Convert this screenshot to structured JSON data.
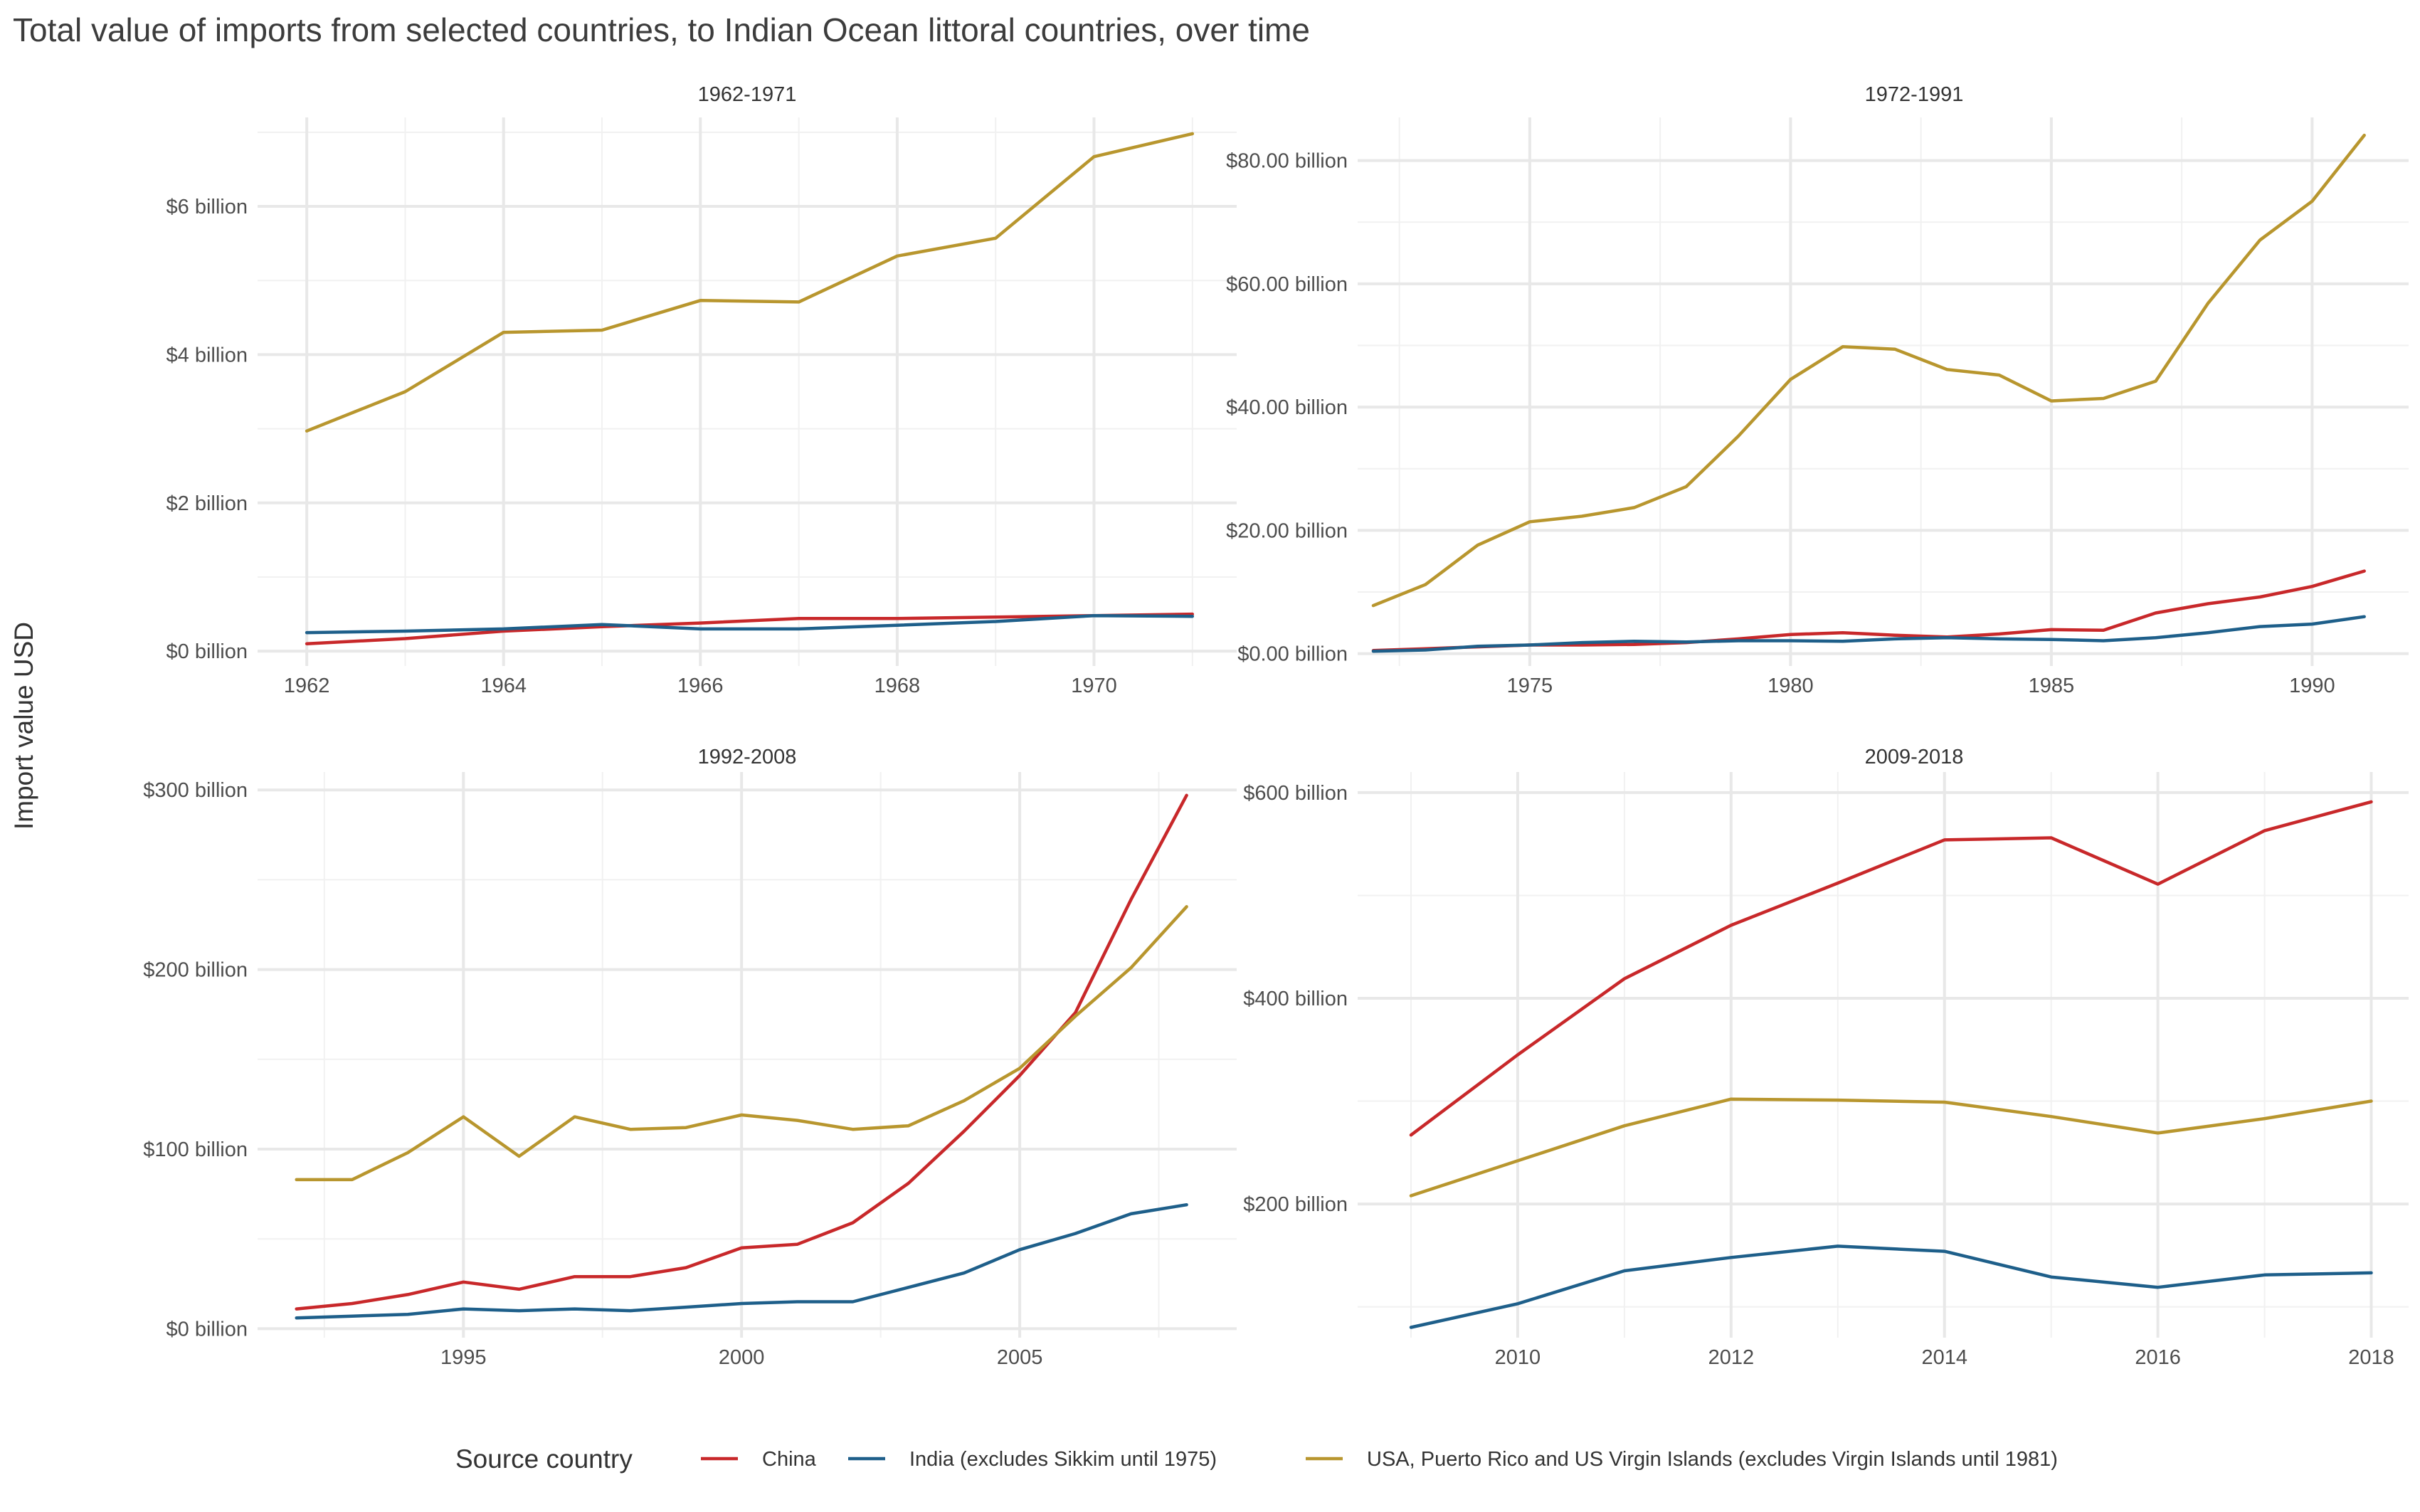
{
  "title": "Total value of imports from selected countries, to Indian Ocean littoral countries, over time",
  "y_axis_label": "Import value USD",
  "legend": {
    "title": "Source country",
    "entries": [
      {
        "name": "China",
        "color": "#c8282a"
      },
      {
        "name": "India (excludes Sikkim until 1975)",
        "color": "#1e5f8a"
      },
      {
        "name": "USA, Puerto Rico and US Virgin Islands (excludes Virgin Islands until 1981)",
        "color": "#b8962e"
      }
    ],
    "placement": "bottom"
  },
  "chart_data": [
    {
      "type": "line",
      "title": "1962-1971",
      "x_ticks": [
        1962,
        1964,
        1966,
        1968,
        1970
      ],
      "xlim": [
        1961.5,
        1971.45
      ],
      "y_ticks": [
        0,
        2,
        4,
        6
      ],
      "y_tick_labels": [
        "$0 billion",
        "$2 billion",
        "$4 billion",
        "$6 billion"
      ],
      "ylim": [
        -0.2,
        7.2
      ],
      "grid": true,
      "x": [
        1962,
        1963,
        1964,
        1965,
        1966,
        1967,
        1968,
        1969,
        1970,
        1971
      ],
      "series": [
        {
          "name": "China",
          "values": [
            0.1,
            0.17,
            0.27,
            0.33,
            0.38,
            0.44,
            0.44,
            0.46,
            0.48,
            0.5
          ]
        },
        {
          "name": "India (excludes Sikkim until 1975)",
          "values": [
            0.25,
            0.27,
            0.3,
            0.36,
            0.3,
            0.3,
            0.35,
            0.4,
            0.48,
            0.47
          ]
        },
        {
          "name": "USA, Puerto Rico and US Virgin Islands (excludes Virgin Islands until 1981)",
          "values": [
            2.97,
            3.5,
            4.3,
            4.33,
            4.73,
            4.71,
            5.33,
            5.57,
            6.67,
            6.98
          ]
        }
      ]
    },
    {
      "type": "line",
      "title": "1972-1991",
      "x_ticks": [
        1975,
        1980,
        1985,
        1990
      ],
      "xlim": [
        1971.7,
        1991.85
      ],
      "y_ticks": [
        0,
        20,
        40,
        60,
        80
      ],
      "y_tick_labels": [
        "$0.00 billion",
        "$20.00 billion",
        "$40.00 billion",
        "$60.00 billion",
        "$80.00 billion"
      ],
      "ylim": [
        -2,
        87
      ],
      "grid": true,
      "x": [
        1972,
        1973,
        1974,
        1975,
        1976,
        1977,
        1978,
        1979,
        1980,
        1981,
        1982,
        1983,
        1984,
        1985,
        1986,
        1987,
        1988,
        1989,
        1990,
        1991
      ],
      "series": [
        {
          "name": "China",
          "values": [
            0.5,
            0.8,
            1.1,
            1.4,
            1.4,
            1.5,
            1.8,
            2.4,
            3.1,
            3.4,
            3.0,
            2.7,
            3.2,
            3.9,
            3.8,
            6.6,
            8.1,
            9.2,
            10.9,
            13.4
          ]
        },
        {
          "name": "India (excludes Sikkim until 1975)",
          "values": [
            0.4,
            0.6,
            1.2,
            1.4,
            1.8,
            2.0,
            1.9,
            2.1,
            2.1,
            2.0,
            2.4,
            2.6,
            2.4,
            2.3,
            2.1,
            2.6,
            3.4,
            4.4,
            4.8,
            6.0
          ]
        },
        {
          "name": "USA, Puerto Rico and US Virgin Islands (excludes Virgin Islands until 1981)",
          "values": [
            7.8,
            11.2,
            17.6,
            21.4,
            22.3,
            23.7,
            27.1,
            35.3,
            44.5,
            49.8,
            49.4,
            46.1,
            45.2,
            41.0,
            41.4,
            44.2,
            56.8,
            67.1,
            73.4,
            84.1
          ]
        }
      ]
    },
    {
      "type": "line",
      "title": "1992-2008",
      "x_ticks": [
        1995,
        2000,
        2005
      ],
      "xlim": [
        1991.3,
        2008.9
      ],
      "y_ticks": [
        0,
        100,
        200,
        300
      ],
      "y_tick_labels": [
        "$0 billion",
        "$100 billion",
        "$200 billion",
        "$300 billion"
      ],
      "ylim": [
        -5,
        310
      ],
      "grid": true,
      "x": [
        1992,
        1993,
        1994,
        1995,
        1996,
        1997,
        1998,
        1999,
        2000,
        2001,
        2002,
        2003,
        2004,
        2005,
        2006,
        2007,
        2008
      ],
      "series": [
        {
          "name": "China",
          "values": [
            11,
            14,
            19,
            26,
            22,
            29,
            29,
            34,
            45,
            47,
            59,
            81,
            110,
            141,
            176,
            239,
            297
          ]
        },
        {
          "name": "India (excludes Sikkim until 1975)",
          "values": [
            6,
            7,
            8,
            11,
            10,
            11,
            10,
            12,
            14,
            15,
            15,
            23,
            31,
            44,
            53,
            64,
            69
          ]
        },
        {
          "name": "USA, Puerto Rico and US Virgin Islands (excludes Virgin Islands until 1981)",
          "values": [
            83,
            83,
            98,
            118,
            96,
            118,
            111,
            112,
            119,
            116,
            111,
            113,
            127,
            145,
            174,
            201,
            235
          ]
        }
      ]
    },
    {
      "type": "line",
      "title": "2009-2018",
      "x_ticks": [
        2010,
        2012,
        2014,
        2016,
        2018
      ],
      "xlim": [
        2008.5,
        2018.35
      ],
      "y_ticks": [
        200,
        400,
        600
      ],
      "y_tick_labels": [
        "$200 billion",
        "$400 billion",
        "$600 billion"
      ],
      "ylim": [
        70,
        620
      ],
      "grid": true,
      "x": [
        2009,
        2010,
        2011,
        2012,
        2013,
        2014,
        2015,
        2016,
        2017,
        2018
      ],
      "series": [
        {
          "name": "China",
          "values": [
            267,
            345,
            419,
            471,
            512,
            554,
            556,
            511,
            563,
            591
          ]
        },
        {
          "name": "India (excludes Sikkim until 1975)",
          "values": [
            80,
            103,
            135,
            148,
            159,
            154,
            129,
            119,
            131,
            133
          ]
        },
        {
          "name": "USA, Puerto Rico and US Virgin Islands (excludes Virgin Islands until 1981)",
          "values": [
            208,
            242,
            276,
            302,
            301,
            299,
            285,
            269,
            283,
            300
          ]
        }
      ]
    }
  ]
}
